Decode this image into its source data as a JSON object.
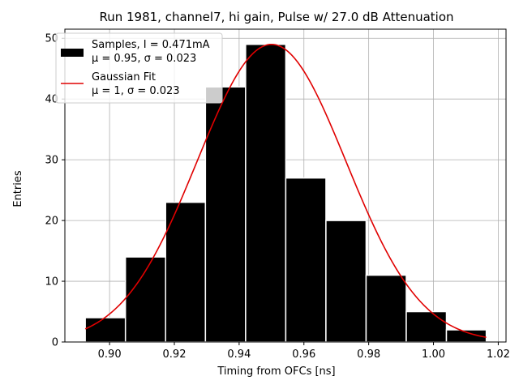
{
  "chart_data": {
    "type": "bar",
    "title": "Run 1981, channel7, hi gain, Pulse w/ 27.0 dB Attenuation",
    "xlabel": "Timing from OFCs [ns]",
    "ylabel": "Entries",
    "xlim": [
      0.8862,
      1.0224
    ],
    "ylim": [
      0,
      51.5
    ],
    "grid": true,
    "legend_position": "top-left",
    "x_ticks": [
      0.9,
      0.92,
      0.94,
      0.96,
      0.98,
      1.0,
      1.02
    ],
    "x_tick_labels": [
      "0.90",
      "0.92",
      "0.94",
      "0.96",
      "0.98",
      "1.00",
      "1.02"
    ],
    "y_ticks": [
      0,
      10,
      20,
      30,
      40,
      50
    ],
    "y_tick_labels": [
      "0",
      "10",
      "20",
      "30",
      "40",
      "50"
    ],
    "histogram": {
      "bin_edges": [
        0.8925,
        0.9049,
        0.9173,
        0.9296,
        0.942,
        0.9544,
        0.9668,
        0.9792,
        0.9916,
        1.004,
        1.0163
      ],
      "counts": [
        4,
        14,
        23,
        42,
        49,
        27,
        20,
        11,
        5,
        2
      ],
      "color": "#000000",
      "edgecolor": "#ffffff"
    },
    "fit_curve": {
      "amplitude": 49,
      "mean": 0.95,
      "sigma": 0.023,
      "x_range": [
        0.8925,
        1.0163
      ],
      "color": "#e00000"
    },
    "legend": [
      {
        "line1": "Samples, I = 0.471mA",
        "line2": "μ = 0.95, σ = 0.023",
        "kind": "patch",
        "color": "#000000"
      },
      {
        "line1": "Gaussian Fit",
        "line2": "μ = 1, σ = 0.023",
        "kind": "line",
        "color": "#e00000"
      }
    ]
  }
}
